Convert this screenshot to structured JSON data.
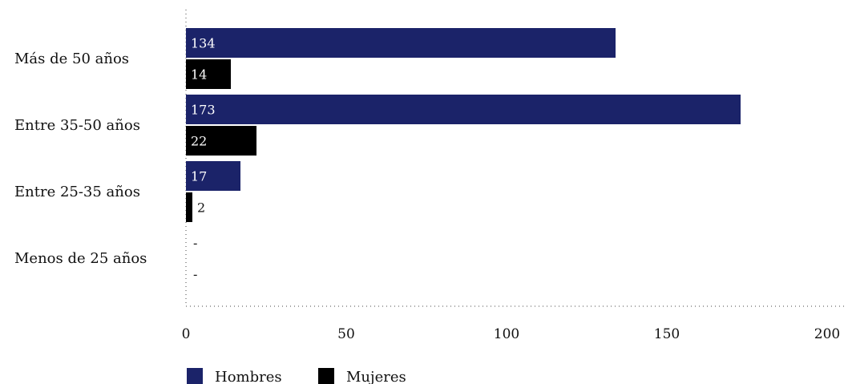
{
  "chart_data": {
    "type": "bar",
    "orientation": "horizontal",
    "categories": [
      "Más de 50 años",
      "Entre 35-50 años",
      "Entre 25-35 años",
      "Menos de 25 años"
    ],
    "series": [
      {
        "name": "Hombres",
        "color": "#1b2369",
        "values": [
          134,
          173,
          17,
          null
        ],
        "labels": [
          "134",
          "173",
          "17",
          "-"
        ]
      },
      {
        "name": "Mujeres",
        "color": "#000000",
        "values": [
          14,
          22,
          2,
          null
        ],
        "labels": [
          "14",
          "22",
          "2",
          "-"
        ]
      }
    ],
    "xlim": [
      0,
      200
    ],
    "xticks": [
      "0",
      "50",
      "100",
      "150",
      "200"
    ],
    "grid": false,
    "legend_position": "bottom-left",
    "title": "",
    "xlabel": "",
    "ylabel": ""
  }
}
